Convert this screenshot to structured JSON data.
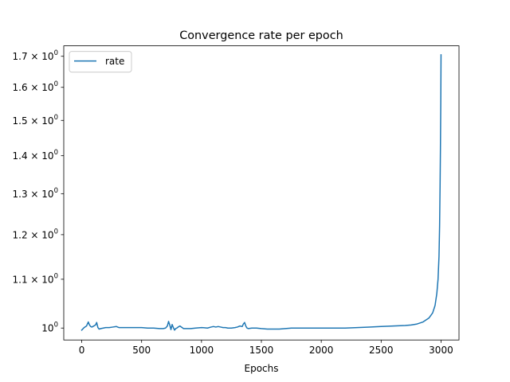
{
  "chart_data": {
    "type": "line",
    "title": "Convergence rate per epoch",
    "xlabel": "Epochs",
    "ylabel": "",
    "yscale": "log",
    "xlim": [
      -150,
      3150
    ],
    "ylim": [
      0.977,
      1.735
    ],
    "xticks": [
      0,
      500,
      1000,
      1500,
      2000,
      2500,
      3000
    ],
    "yticks": [
      {
        "value": 1.0,
        "mant": "10",
        "exp": "0",
        "prefix": ""
      },
      {
        "value": 1.1,
        "mant": "10",
        "exp": "0",
        "prefix": "1.1 × "
      },
      {
        "value": 1.2,
        "mant": "10",
        "exp": "0",
        "prefix": "1.2 × "
      },
      {
        "value": 1.3,
        "mant": "10",
        "exp": "0",
        "prefix": "1.3 × "
      },
      {
        "value": 1.4,
        "mant": "10",
        "exp": "0",
        "prefix": "1.4 × "
      },
      {
        "value": 1.5,
        "mant": "10",
        "exp": "0",
        "prefix": "1.5 × "
      },
      {
        "value": 1.6,
        "mant": "10",
        "exp": "0",
        "prefix": "1.6 × "
      },
      {
        "value": 1.7,
        "mant": "10",
        "exp": "0",
        "prefix": "1.7 × "
      }
    ],
    "grid": false,
    "legend": "top-left",
    "series": [
      {
        "name": "rate",
        "color": "#1f77b4",
        "x": [
          0,
          20,
          40,
          55,
          65,
          75,
          85,
          100,
          115,
          125,
          135,
          145,
          160,
          180,
          200,
          230,
          260,
          290,
          310,
          350,
          400,
          450,
          500,
          550,
          600,
          650,
          680,
          700,
          715,
          725,
          735,
          745,
          755,
          765,
          775,
          785,
          795,
          805,
          820,
          850,
          880,
          910,
          950,
          1000,
          1050,
          1080,
          1100,
          1120,
          1140,
          1160,
          1180,
          1200,
          1220,
          1250,
          1280,
          1300,
          1320,
          1340,
          1350,
          1360,
          1370,
          1380,
          1390,
          1420,
          1460,
          1500,
          1550,
          1600,
          1650,
          1700,
          1750,
          1800,
          1900,
          2000,
          2100,
          2200,
          2300,
          2400,
          2500,
          2600,
          2700,
          2750,
          2800,
          2850,
          2900,
          2930,
          2950,
          2965,
          2975,
          2983,
          2988,
          2992,
          2995,
          2998,
          3000
        ],
        "y": [
          0.996,
          1.001,
          1.004,
          1.012,
          1.006,
          1.003,
          1.002,
          1.004,
          1.006,
          1.011,
          1.001,
          0.998,
          0.999,
          1.0,
          1.001,
          1.001,
          1.002,
          1.003,
          1.001,
          1.001,
          1.001,
          1.001,
          1.001,
          1.0,
          1.0,
          0.999,
          0.999,
          1.0,
          1.004,
          1.013,
          1.006,
          0.997,
          1.007,
          1.001,
          0.996,
          0.999,
          1.0,
          1.002,
          1.004,
          0.999,
          0.999,
          0.999,
          1.0,
          1.001,
          1.0,
          1.002,
          1.003,
          1.002,
          1.003,
          1.002,
          1.001,
          1.001,
          1.0,
          1.0,
          1.001,
          1.002,
          1.004,
          1.003,
          1.008,
          1.011,
          1.004,
          1.0,
          0.999,
          1.0,
          1.0,
          0.999,
          0.998,
          0.998,
          0.998,
          0.999,
          1.0,
          1.0,
          1.0,
          1.0,
          1.0,
          1.0,
          1.001,
          1.002,
          1.003,
          1.004,
          1.005,
          1.006,
          1.008,
          1.012,
          1.02,
          1.03,
          1.045,
          1.07,
          1.1,
          1.15,
          1.22,
          1.32,
          1.42,
          1.55,
          1.705
        ]
      }
    ]
  }
}
